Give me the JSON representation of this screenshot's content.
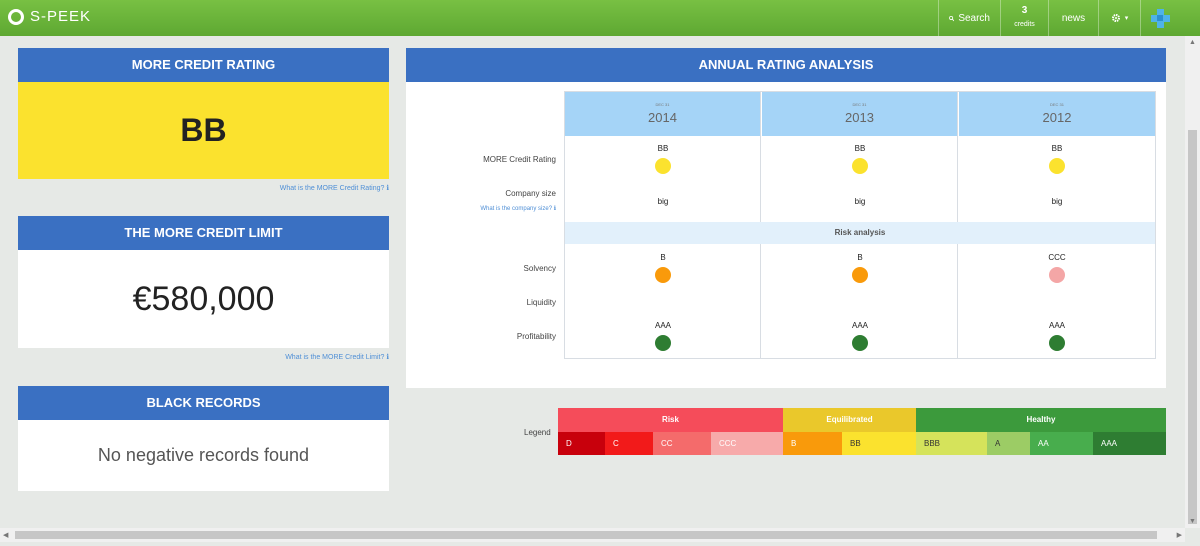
{
  "topbar": {
    "logo": "S-PEEK",
    "search_label": "Search",
    "credits_count": "3",
    "credits_label": "credits",
    "news_label": "news",
    "gear_caret": "▾",
    "user_caret": "▾"
  },
  "rating_card": {
    "title": "MORE CREDIT RATING",
    "value": "BB",
    "help_link": "What is the MORE Credit Rating?  ℹ"
  },
  "limit_card": {
    "title": "THE MORE CREDIT LIMIT",
    "value": "€580,000",
    "help_link": "What is the MORE Credit Limit?  ℹ"
  },
  "black_card": {
    "title": "BLACK RECORDS",
    "message": "No negative records found"
  },
  "analysis": {
    "title": "ANNUAL RATING ANALYSIS",
    "row_labels": {
      "rating": "MORE Credit Rating",
      "size": "Company size",
      "size_link": "What is the company size?  ℹ",
      "solvency": "Solvency",
      "liquidity": "Liquidity",
      "profitability": "Profitability"
    },
    "risk_band": "Risk analysis",
    "columns": [
      {
        "date": "DEC 31",
        "year": "2014",
        "rating": "BB",
        "rating_color": "#fbe22e",
        "size": "big",
        "solvency": "B",
        "solvency_color": "#f99a0b",
        "profitability": "AAA",
        "profitability_color": "#2e7d32"
      },
      {
        "date": "DEC 31",
        "year": "2013",
        "rating": "BB",
        "rating_color": "#fbe22e",
        "size": "big",
        "solvency": "B",
        "solvency_color": "#f99a0b",
        "profitability": "AAA",
        "profitability_color": "#2e7d32"
      },
      {
        "date": "DEC 31",
        "year": "2012",
        "rating": "BB",
        "rating_color": "#fbe22e",
        "size": "big",
        "solvency": "CCC",
        "solvency_color": "#f4a6a6",
        "profitability": "AAA",
        "profitability_color": "#2e7d32"
      }
    ]
  },
  "legend": {
    "label": "Legend",
    "groups": [
      {
        "name": "Risk",
        "color": "#f54c5a"
      },
      {
        "name": "Equilibrated",
        "color": "#eac82b"
      },
      {
        "name": "Healthy",
        "color": "#3c9a3c"
      }
    ],
    "grades": [
      {
        "name": "D",
        "color": "#c8000c"
      },
      {
        "name": "C",
        "color": "#f21a1a"
      },
      {
        "name": "CC",
        "color": "#f46b6b"
      },
      {
        "name": "CCC",
        "color": "#f7aaaa"
      },
      {
        "name": "B",
        "color": "#f99a0b"
      },
      {
        "name": "BB",
        "color": "#fbe22e",
        "dark": true
      },
      {
        "name": "BBB",
        "color": "#d5e35b",
        "dark": true
      },
      {
        "name": "A",
        "color": "#9ccc65",
        "dark": true
      },
      {
        "name": "AA",
        "color": "#48ad4d"
      },
      {
        "name": "AAA",
        "color": "#2e7d32"
      }
    ]
  }
}
